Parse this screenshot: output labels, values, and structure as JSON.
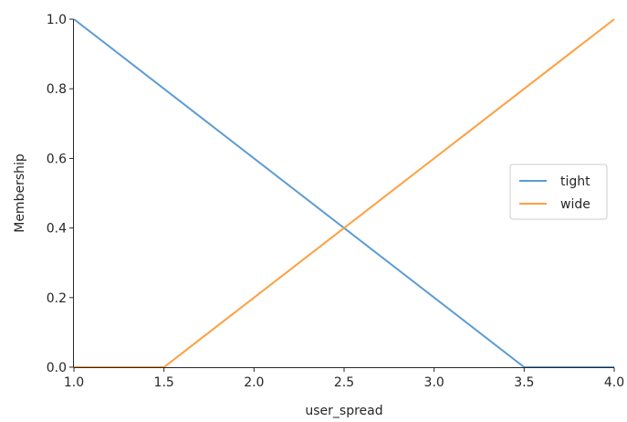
{
  "chart_data": {
    "type": "line",
    "xlabel": "user_spread",
    "ylabel": "Membership",
    "xlim": [
      1.0,
      4.0
    ],
    "ylim": [
      0.0,
      1.0
    ],
    "xticks": [
      "1.0",
      "1.5",
      "2.0",
      "2.5",
      "3.0",
      "3.5",
      "4.0"
    ],
    "yticks": [
      "0.0",
      "0.2",
      "0.4",
      "0.6",
      "0.8",
      "1.0"
    ],
    "grid": false,
    "legend_position": "center-right",
    "series": [
      {
        "name": "tight",
        "color": "#5b9bd5",
        "x": [
          1.0,
          3.5,
          4.0
        ],
        "y": [
          1.0,
          0.0,
          0.0
        ]
      },
      {
        "name": "wide",
        "color": "#ff9f40",
        "x": [
          1.0,
          1.5,
          4.0
        ],
        "y": [
          0.0,
          0.0,
          1.0
        ]
      }
    ]
  }
}
